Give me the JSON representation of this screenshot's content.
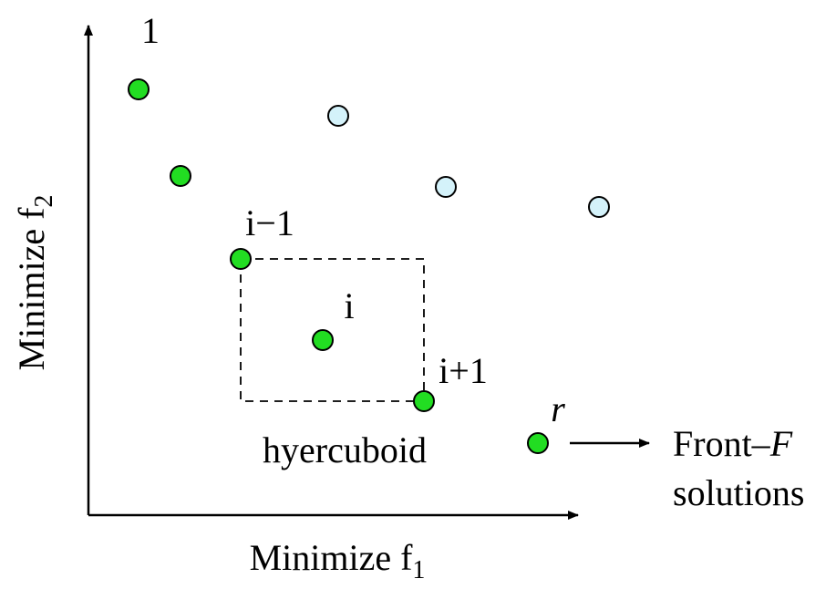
{
  "point_labels": [
    "1",
    "i−1",
    "i",
    "i+1",
    "r"
  ],
  "box_label": "hyercuboid",
  "front_label": {
    "prefix": "Front–",
    "italic": "F",
    "line2": "solutions"
  },
  "x_axis_label": {
    "text": "Minimize f",
    "subscript": "1"
  },
  "y_axis_label": {
    "text": "Minimize f",
    "subscript": "2"
  }
}
